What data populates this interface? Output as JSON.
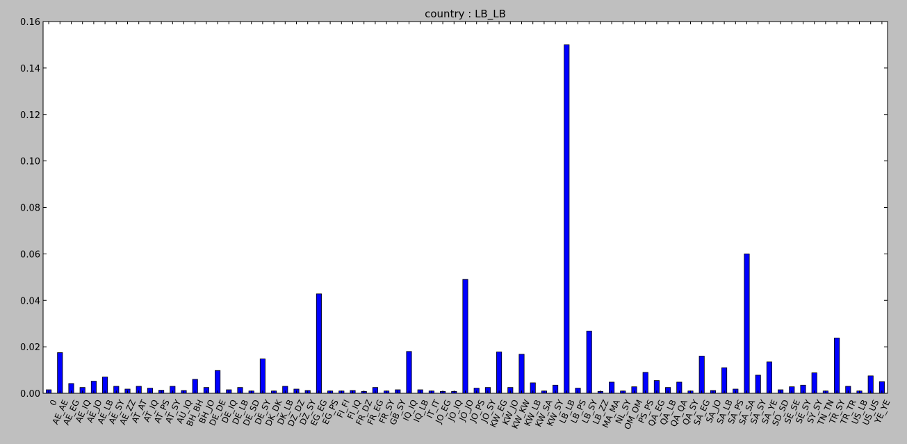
{
  "chart_data": {
    "type": "bar",
    "title": "country : LB_LB",
    "xlabel": "",
    "ylabel": "",
    "ylim": [
      0,
      0.16
    ],
    "yticks": [
      0.0,
      0.02,
      0.04,
      0.06,
      0.08,
      0.1,
      0.12,
      0.14,
      0.16
    ],
    "ytick_labels": [
      "0.00",
      "0.02",
      "0.04",
      "0.06",
      "0.08",
      "0.10",
      "0.12",
      "0.14",
      "0.16"
    ],
    "grid": false,
    "legend": "none",
    "bar_color": "#0000ff",
    "background_color": "#bfbfbf",
    "plot_background_color": "#ffffff",
    "categories": [
      "0",
      "AE_AE",
      "AE_EG",
      "AE_IQ",
      "AE_JO",
      "AE_LB",
      "AE_SY",
      "AE_ZZ",
      "AT_AT",
      "AT_IQ",
      "AT_PS",
      "AT_SY",
      "AU_IQ",
      "BH_BH",
      "BH_JO",
      "DE_DE",
      "DE_IQ",
      "DE_LB",
      "DE_SD",
      "DE_SY",
      "DK_DK",
      "DK_LB",
      "DZ_DZ",
      "DZ_SY",
      "EG_EG",
      "EG_PS",
      "FI_FI",
      "FI_IQ",
      "FR_DZ",
      "FR_EG",
      "FR_SY",
      "GB_SY",
      "IQ_IQ",
      "IQ_LB",
      "IT_IT",
      "JO_EG",
      "JO_IQ",
      "JO_JO",
      "JO_PS",
      "JO_SY",
      "KW_EG",
      "KW_JO",
      "KW_KW",
      "KW_LB",
      "KW_SA",
      "KW_SY",
      "LB_LB",
      "LB_PS",
      "LB_SY",
      "LB_ZZ",
      "MA_MA",
      "NL_SY",
      "OM_OM",
      "PS_PS",
      "QA_EG",
      "QA_LB",
      "QA_QA",
      "QA_SY",
      "SA_EG",
      "SA_JO",
      "SA_LB",
      "SA_PS",
      "SA_SA",
      "SA_SY",
      "SA_YE",
      "SD_SD",
      "SE_SE",
      "SE_SY",
      "SY_SY",
      "TN_TN",
      "TR_SY",
      "TR_TR",
      "US_LB",
      "US_US",
      "YE_YE"
    ],
    "values": [
      0.0015,
      0.0175,
      0.0042,
      0.0025,
      0.0052,
      0.007,
      0.003,
      0.0018,
      0.003,
      0.0022,
      0.0013,
      0.003,
      0.0012,
      0.006,
      0.0025,
      0.0098,
      0.0015,
      0.0025,
      0.001,
      0.0148,
      0.001,
      0.003,
      0.0018,
      0.0012,
      0.0428,
      0.001,
      0.001,
      0.0012,
      0.0008,
      0.0025,
      0.001,
      0.0015,
      0.018,
      0.0015,
      0.001,
      0.0008,
      0.0008,
      0.049,
      0.0022,
      0.0025,
      0.0178,
      0.0025,
      0.0168,
      0.0045,
      0.001,
      0.0035,
      0.15,
      0.0022,
      0.0268,
      0.0008,
      0.0048,
      0.001,
      0.0028,
      0.009,
      0.0055,
      0.0025,
      0.0048,
      0.001,
      0.016,
      0.0012,
      0.011,
      0.0018,
      0.06,
      0.0078,
      0.0135,
      0.0015,
      0.0028,
      0.0035,
      0.0088,
      0.001,
      0.0238,
      0.003,
      0.001,
      0.0075,
      0.005
    ]
  }
}
